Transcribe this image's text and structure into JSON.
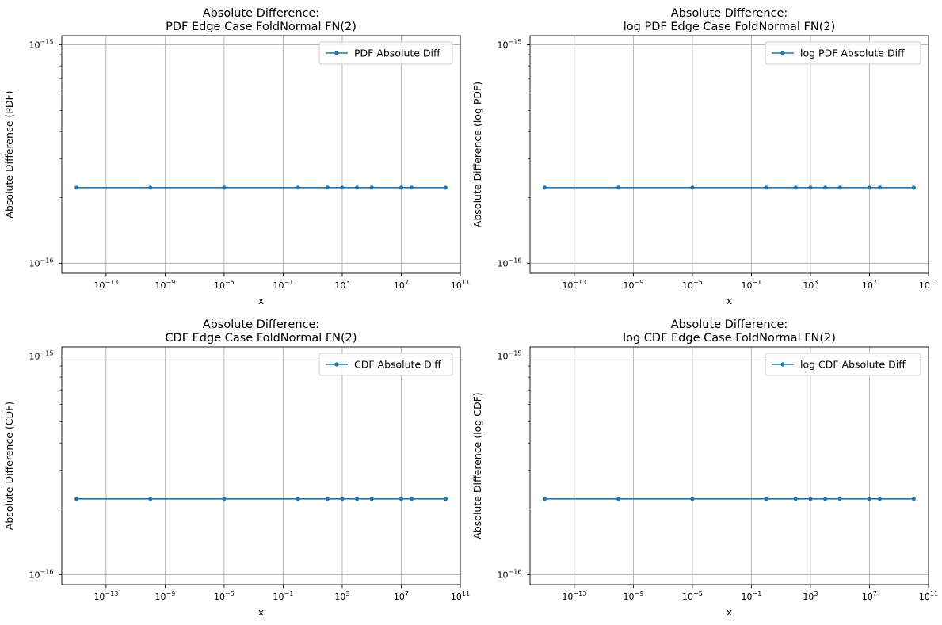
{
  "chart_data": [
    {
      "type": "line",
      "title": [
        "Absolute Difference:",
        "PDF Edge Case FoldNormal FN(2)"
      ],
      "xlabel": "x",
      "ylabel": "Absolute Difference (PDF)",
      "xscale": "log",
      "yscale": "log",
      "xlim": [
        1e-16,
        100000000000.0
      ],
      "ylim": [
        9e-17,
        1.1e-15
      ],
      "xticks": [
        {
          "base": "10",
          "exp": "−13",
          "value": 1e-13
        },
        {
          "base": "10",
          "exp": "−9",
          "value": 1e-09
        },
        {
          "base": "10",
          "exp": "−5",
          "value": 1e-05
        },
        {
          "base": "10",
          "exp": "−1",
          "value": 0.1
        },
        {
          "base": "10",
          "exp": "3",
          "value": 1000.0
        },
        {
          "base": "10",
          "exp": "7",
          "value": 10000000.0
        },
        {
          "base": "10",
          "exp": "11",
          "value": 100000000000.0
        }
      ],
      "yticks": [
        {
          "base": "10",
          "exp": "−15",
          "value": 1e-15
        },
        {
          "base": "10",
          "exp": "−16",
          "value": 1e-16
        }
      ],
      "grid": true,
      "legend": "top-right",
      "color": "#1f77b4",
      "series": [
        {
          "name": "PDF Absolute Diff",
          "x": [
            1e-15,
            1e-10,
            1e-05,
            1,
            100,
            1000,
            10000,
            100000,
            10000000,
            50000000,
            10000000000
          ],
          "y": [
            2.22e-16,
            2.22e-16,
            2.22e-16,
            2.22e-16,
            2.22e-16,
            2.22e-16,
            2.22e-16,
            2.22e-16,
            2.22e-16,
            2.22e-16,
            2.22e-16
          ]
        }
      ]
    },
    {
      "type": "line",
      "title": [
        "Absolute Difference:",
        "log PDF Edge Case FoldNormal FN(2)"
      ],
      "xlabel": "x",
      "ylabel": "Absolute Difference (log PDF)",
      "xscale": "log",
      "yscale": "log",
      "xlim": [
        1e-16,
        100000000000.0
      ],
      "ylim": [
        9e-17,
        1.1e-15
      ],
      "xticks": [
        {
          "base": "10",
          "exp": "−13",
          "value": 1e-13
        },
        {
          "base": "10",
          "exp": "−9",
          "value": 1e-09
        },
        {
          "base": "10",
          "exp": "−5",
          "value": 1e-05
        },
        {
          "base": "10",
          "exp": "−1",
          "value": 0.1
        },
        {
          "base": "10",
          "exp": "3",
          "value": 1000.0
        },
        {
          "base": "10",
          "exp": "7",
          "value": 10000000.0
        },
        {
          "base": "10",
          "exp": "11",
          "value": 100000000000.0
        }
      ],
      "yticks": [
        {
          "base": "10",
          "exp": "−15",
          "value": 1e-15
        },
        {
          "base": "10",
          "exp": "−16",
          "value": 1e-16
        }
      ],
      "grid": true,
      "legend": "top-right",
      "color": "#1f77b4",
      "series": [
        {
          "name": "log PDF Absolute Diff",
          "x": [
            1e-15,
            1e-10,
            1e-05,
            1,
            100,
            1000,
            10000,
            100000,
            10000000,
            50000000,
            10000000000
          ],
          "y": [
            2.22e-16,
            2.22e-16,
            2.22e-16,
            2.22e-16,
            2.22e-16,
            2.22e-16,
            2.22e-16,
            2.22e-16,
            2.22e-16,
            2.22e-16,
            2.22e-16
          ]
        }
      ]
    },
    {
      "type": "line",
      "title": [
        "Absolute Difference:",
        "CDF Edge Case FoldNormal FN(2)"
      ],
      "xlabel": "x",
      "ylabel": "Absolute Difference (CDF)",
      "xscale": "log",
      "yscale": "log",
      "xlim": [
        1e-16,
        100000000000.0
      ],
      "ylim": [
        9e-17,
        1.1e-15
      ],
      "xticks": [
        {
          "base": "10",
          "exp": "−13",
          "value": 1e-13
        },
        {
          "base": "10",
          "exp": "−9",
          "value": 1e-09
        },
        {
          "base": "10",
          "exp": "−5",
          "value": 1e-05
        },
        {
          "base": "10",
          "exp": "−1",
          "value": 0.1
        },
        {
          "base": "10",
          "exp": "3",
          "value": 1000.0
        },
        {
          "base": "10",
          "exp": "7",
          "value": 10000000.0
        },
        {
          "base": "10",
          "exp": "11",
          "value": 100000000000.0
        }
      ],
      "yticks": [
        {
          "base": "10",
          "exp": "−15",
          "value": 1e-15
        },
        {
          "base": "10",
          "exp": "−16",
          "value": 1e-16
        }
      ],
      "grid": true,
      "legend": "top-right",
      "color": "#1f77b4",
      "series": [
        {
          "name": "CDF Absolute Diff",
          "x": [
            1e-15,
            1e-10,
            1e-05,
            1,
            100,
            1000,
            10000,
            100000,
            10000000,
            50000000,
            10000000000
          ],
          "y": [
            2.22e-16,
            2.22e-16,
            2.22e-16,
            2.22e-16,
            2.22e-16,
            2.22e-16,
            2.22e-16,
            2.22e-16,
            2.22e-16,
            2.22e-16,
            2.22e-16
          ]
        }
      ]
    },
    {
      "type": "line",
      "title": [
        "Absolute Difference:",
        "log CDF Edge Case FoldNormal FN(2)"
      ],
      "xlabel": "x",
      "ylabel": "Absolute Difference (log CDF)",
      "xscale": "log",
      "yscale": "log",
      "xlim": [
        1e-16,
        100000000000.0
      ],
      "ylim": [
        9e-17,
        1.1e-15
      ],
      "xticks": [
        {
          "base": "10",
          "exp": "−13",
          "value": 1e-13
        },
        {
          "base": "10",
          "exp": "−9",
          "value": 1e-09
        },
        {
          "base": "10",
          "exp": "−5",
          "value": 1e-05
        },
        {
          "base": "10",
          "exp": "−1",
          "value": 0.1
        },
        {
          "base": "10",
          "exp": "3",
          "value": 1000.0
        },
        {
          "base": "10",
          "exp": "7",
          "value": 10000000.0
        },
        {
          "base": "10",
          "exp": "11",
          "value": 100000000000.0
        }
      ],
      "yticks": [
        {
          "base": "10",
          "exp": "−15",
          "value": 1e-15
        },
        {
          "base": "10",
          "exp": "−16",
          "value": 1e-16
        }
      ],
      "grid": true,
      "legend": "top-right",
      "color": "#1f77b4",
      "series": [
        {
          "name": "log CDF Absolute Diff",
          "x": [
            1e-15,
            1e-10,
            1e-05,
            1,
            100,
            1000,
            10000,
            100000,
            10000000,
            50000000,
            10000000000
          ],
          "y": [
            2.22e-16,
            2.22e-16,
            2.22e-16,
            2.22e-16,
            2.22e-16,
            2.22e-16,
            2.22e-16,
            2.22e-16,
            2.22e-16,
            2.22e-16,
            2.22e-16
          ]
        }
      ]
    }
  ]
}
